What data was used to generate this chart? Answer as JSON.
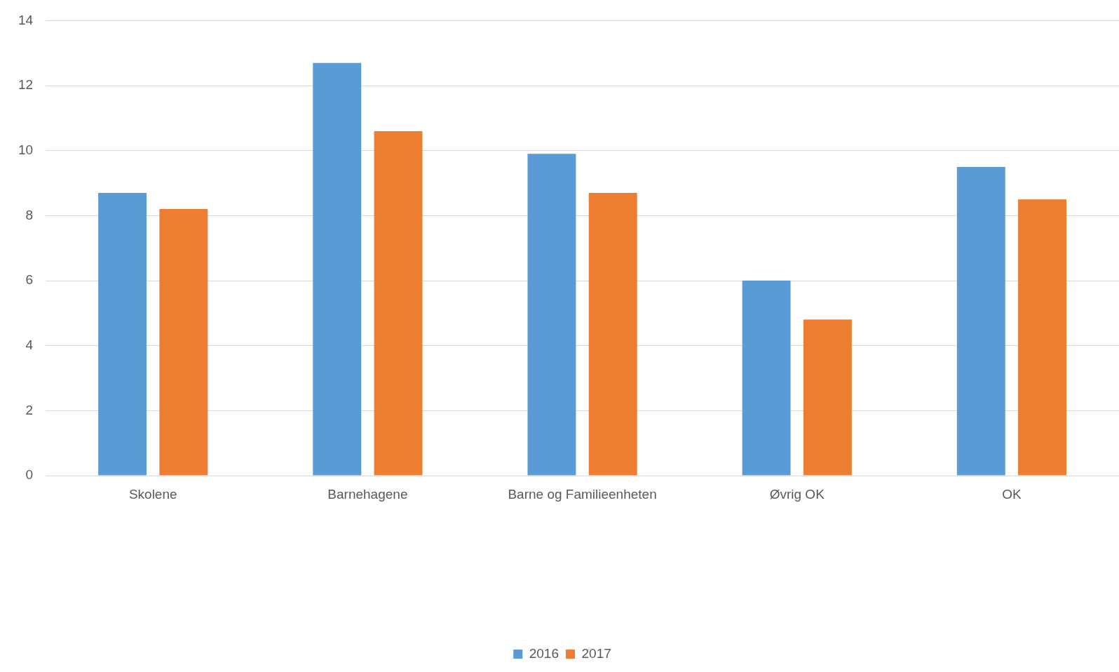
{
  "chart_data": {
    "type": "bar",
    "categories": [
      "Skolene",
      "Barnehagene",
      "Barne og Familieenheten",
      "Øvrig OK",
      "OK"
    ],
    "series": [
      {
        "name": "2016",
        "color": "#5b9bd5",
        "values": [
          8.7,
          12.7,
          9.9,
          6.0,
          9.5
        ]
      },
      {
        "name": "2017",
        "color": "#ed7d31",
        "values": [
          8.2,
          10.6,
          8.7,
          4.8,
          8.5
        ]
      }
    ],
    "ylim": [
      0,
      14
    ],
    "yticks": [
      0,
      2,
      4,
      6,
      8,
      10,
      12,
      14
    ],
    "grid": "y",
    "legend": "bottom"
  }
}
